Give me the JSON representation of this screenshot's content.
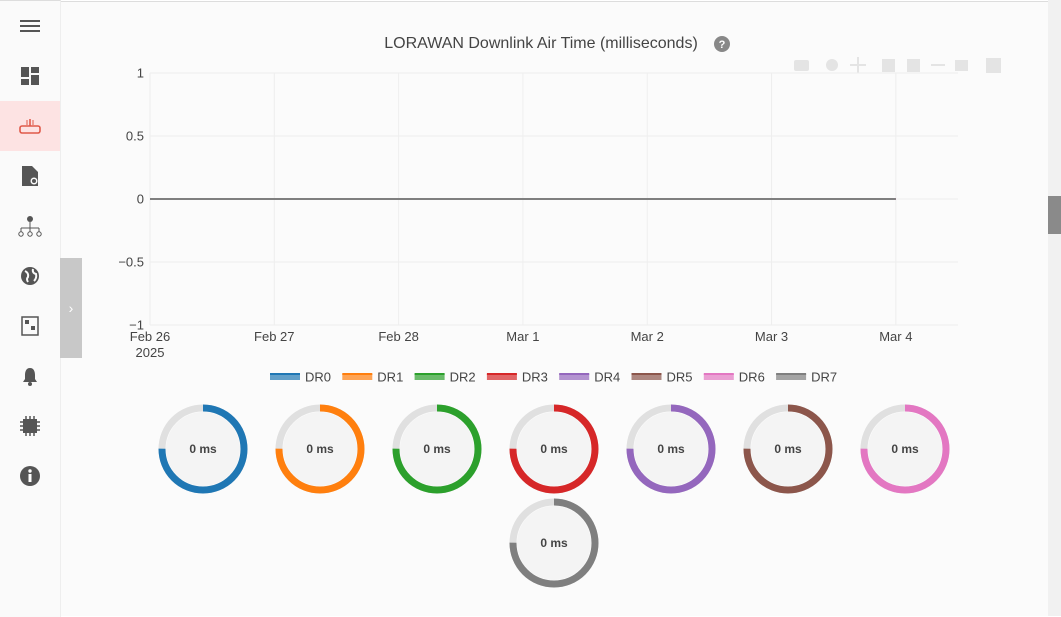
{
  "chart_data": {
    "type": "line",
    "title": "LORAWAN Downlink Air Time (milliseconds)",
    "x": [
      "2025-02-26",
      "2025-02-27",
      "2025-02-28",
      "2025-03-01",
      "2025-03-02",
      "2025-03-03",
      "2025-03-04"
    ],
    "xlim": [
      "2025-02-26T00:00",
      "2025-03-04T12:00"
    ],
    "xticks": [
      {
        "value": "2025-02-26",
        "label": "Feb 26\n2025"
      },
      {
        "value": "2025-02-27",
        "label": "Feb 27"
      },
      {
        "value": "2025-02-28",
        "label": "Feb 28"
      },
      {
        "value": "2025-03-01",
        "label": "Mar 1"
      },
      {
        "value": "2025-03-02",
        "label": "Mar 2"
      },
      {
        "value": "2025-03-03",
        "label": "Mar 3"
      },
      {
        "value": "2025-03-04",
        "label": "Mar 4"
      }
    ],
    "ylim": [
      -1,
      1
    ],
    "yticks": [
      1,
      0.5,
      0,
      {
        "value": -0.5,
        "label": "−0.5"
      },
      {
        "value": -1,
        "label": "−1"
      }
    ],
    "grid": true,
    "series": [
      {
        "name": "DR0",
        "color": "#1f77b4",
        "values": [
          0,
          0,
          0,
          0,
          0,
          0,
          0
        ]
      },
      {
        "name": "DR1",
        "color": "#ff7f0e",
        "values": [
          0,
          0,
          0,
          0,
          0,
          0,
          0
        ]
      },
      {
        "name": "DR2",
        "color": "#2ca02c",
        "values": [
          0,
          0,
          0,
          0,
          0,
          0,
          0
        ]
      },
      {
        "name": "DR3",
        "color": "#d62728",
        "values": [
          0,
          0,
          0,
          0,
          0,
          0,
          0
        ]
      },
      {
        "name": "DR4",
        "color": "#9467bd",
        "values": [
          0,
          0,
          0,
          0,
          0,
          0,
          0
        ]
      },
      {
        "name": "DR5",
        "color": "#8c564b",
        "values": [
          0,
          0,
          0,
          0,
          0,
          0,
          0
        ]
      },
      {
        "name": "DR6",
        "color": "#e377c2",
        "values": [
          0,
          0,
          0,
          0,
          0,
          0,
          0
        ]
      },
      {
        "name": "DR7",
        "color": "#7f7f7f",
        "values": [
          0,
          0,
          0,
          0,
          0,
          0,
          0
        ]
      }
    ]
  },
  "gauges": {
    "values": [
      0,
      0,
      0,
      0,
      0,
      0,
      0,
      0
    ],
    "value_labels": [
      "0 ms",
      "0 ms",
      "0 ms",
      "0 ms",
      "0 ms",
      "0 ms",
      "0 ms",
      "0 ms"
    ]
  }
}
